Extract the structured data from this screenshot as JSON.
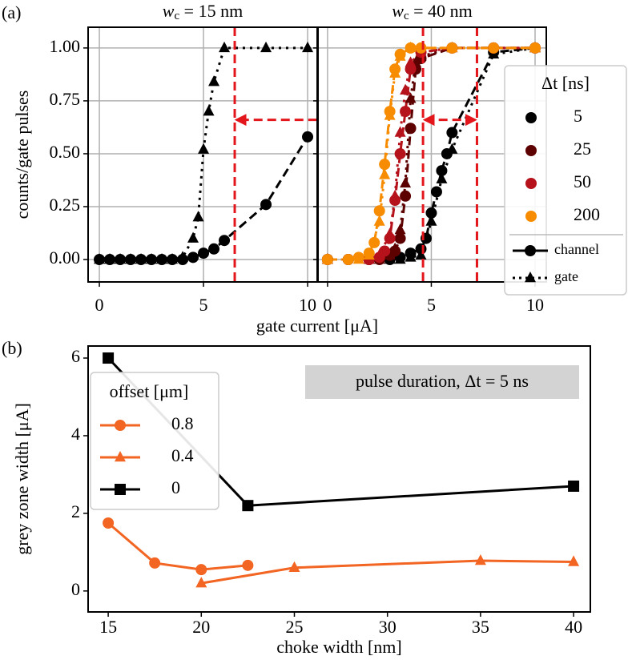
{
  "panel_labels": [
    "(a)",
    "(b)"
  ],
  "chart_data": [
    {
      "type": "line",
      "title": [
        "w",
        "c",
        " = 15 nm"
      ],
      "ylabel": "counts/gate pulses",
      "xlabel": "gate current [μA]",
      "xlim": [
        -0.54,
        10.46
      ],
      "ylim": [
        -0.106,
        1.098
      ],
      "xticks": [
        0,
        5,
        10
      ],
      "yticks": [
        {
          "value": 0,
          "label": "0.00"
        },
        {
          "value": 0.25,
          "label": "0.25"
        },
        {
          "value": 0.5,
          "label": "0.50"
        },
        {
          "value": 0.75,
          "label": "0.75"
        },
        {
          "value": 1,
          "label": "1.00"
        }
      ],
      "grid": true,
      "series": [
        {
          "color": "#000000",
          "channel": {
            "x": [
              0,
              0.5,
              1,
              1.5,
              2,
              2.5,
              3,
              3.5,
              4,
              4.5,
              5,
              5.5,
              6,
              8,
              10
            ],
            "values": [
              0,
              0,
              0,
              0,
              0,
              0,
              0,
              0,
              0,
              0.01,
              0.03,
              0.05,
              0.09,
              0.26,
              0.58
            ]
          },
          "gate": {
            "x": [
              0,
              0.5,
              1,
              1.5,
              2,
              2.5,
              3,
              3.5,
              4,
              4.5,
              4.75,
              5,
              5.25,
              5.5,
              6,
              8,
              10
            ],
            "values": [
              0,
              0,
              0,
              0,
              0,
              0,
              0,
              0,
              0.01,
              0.1,
              0.2,
              0.52,
              0.7,
              0.84,
              1,
              1,
              1
            ]
          }
        }
      ],
      "vlines": [
        6.5
      ],
      "arrows": [
        {
          "y": 0.66,
          "x": [
            10.45,
            6.6
          ],
          "heads": "end"
        }
      ],
      "annotation_color": "#e3161c"
    },
    {
      "type": "line",
      "title": [
        "w",
        "c",
        " = 40 nm"
      ],
      "xlim": [
        -0.46,
        10.54
      ],
      "ylim": [
        -0.106,
        1.098
      ],
      "xticks": [
        0,
        5,
        10
      ],
      "yticks": [
        0,
        0.25,
        0.5,
        0.75,
        1
      ],
      "grid": true,
      "legend_title": "Δt [ns]",
      "line_styles": [
        "channel",
        "gate"
      ],
      "series": [
        {
          "name": "5",
          "color": "#000000",
          "channel": {
            "x": [
              0,
              1,
              2,
              3,
              3.5,
              4,
              4.5,
              4.75,
              5,
              5.25,
              5.5,
              5.75,
              6,
              8,
              10
            ],
            "values": [
              0,
              0,
              0,
              0,
              0.01,
              0.03,
              0.05,
              0.1,
              0.22,
              0.32,
              0.42,
              0.5,
              0.6,
              0.98,
              1
            ]
          },
          "gate": {
            "x": [
              0,
              2,
              3,
              3.5,
              4,
              4.5,
              5,
              5.5,
              6,
              8,
              10
            ],
            "values": [
              0,
              0,
              0,
              0,
              0.01,
              0.02,
              0.18,
              0.38,
              0.52,
              0.97,
              1
            ]
          }
        },
        {
          "name": "25",
          "color": "#5c0000",
          "channel": {
            "x": [
              0,
              1,
              2,
              2.5,
              3,
              3.25,
              3.5,
              3.75,
              4,
              4.25,
              4.5,
              6,
              8,
              10
            ],
            "values": [
              0,
              0,
              0,
              0,
              0.02,
              0.04,
              0.1,
              0.3,
              0.62,
              0.9,
              0.95,
              1,
              1,
              1
            ]
          },
          "gate": {
            "x": [
              0,
              2,
              2.5,
              3,
              3.25,
              3.5,
              3.75,
              4,
              4.25,
              4.5,
              6,
              10
            ],
            "values": [
              0,
              0,
              0,
              0.02,
              0.05,
              0.14,
              0.36,
              0.76,
              0.93,
              0.96,
              1,
              1
            ]
          }
        },
        {
          "name": "50",
          "color": "#b5121b",
          "channel": {
            "x": [
              0,
              1,
              2,
              2.5,
              2.75,
              3,
              3.25,
              3.5,
              3.75,
              4,
              4.5,
              6,
              8,
              10
            ],
            "values": [
              0,
              0,
              0,
              0.01,
              0.04,
              0.1,
              0.28,
              0.5,
              0.7,
              0.9,
              0.98,
              1,
              1,
              1
            ]
          },
          "gate": {
            "x": [
              0,
              2,
              2.5,
              3,
              3.25,
              3.5,
              3.75,
              4,
              4.5,
              6,
              10
            ],
            "values": [
              0,
              0,
              0.02,
              0.12,
              0.3,
              0.6,
              0.8,
              0.93,
              0.98,
              1,
              1
            ]
          }
        },
        {
          "name": "200",
          "color": "#f78c00",
          "channel": {
            "x": [
              0,
              1,
              1.5,
              2,
              2.25,
              2.5,
              2.75,
              3,
              3.25,
              3.5,
              4,
              4.5,
              6,
              8,
              10
            ],
            "values": [
              0,
              0,
              0.01,
              0.03,
              0.08,
              0.23,
              0.45,
              0.7,
              0.9,
              0.97,
              1,
              1,
              1,
              1,
              1
            ]
          },
          "gate": {
            "x": [
              0,
              1.5,
              2,
              2.5,
              2.75,
              3,
              3.25,
              3.5,
              4,
              6,
              10
            ],
            "values": [
              0,
              0,
              0.02,
              0.18,
              0.4,
              0.68,
              0.88,
              0.96,
              1,
              1,
              1
            ]
          }
        }
      ],
      "vlines": [
        4.6,
        7.2
      ],
      "arrows": [
        {
          "y": 0.66,
          "x": [
            4.7,
            7.1
          ],
          "heads": "both"
        }
      ],
      "annotation_color": "#e3161c"
    },
    {
      "type": "line",
      "xlabel": "choke width [nm]",
      "ylabel": "grey zone width [μA]",
      "xlim": [
        13.92,
        40.9
      ],
      "ylim": [
        -0.54,
        6.31
      ],
      "xticks": [
        15,
        20,
        25,
        30,
        35,
        40
      ],
      "yticks": [
        0,
        2,
        4,
        6
      ],
      "grid": false,
      "legend_title": "offset [μm]",
      "annotation": "pulse duration,  Δt = 5 ns",
      "series": [
        {
          "name": "0.8",
          "color": "#f26522",
          "marker": "circle",
          "x": [
            15,
            17.5,
            20,
            22.5
          ],
          "values": [
            1.75,
            0.72,
            0.55,
            0.66
          ]
        },
        {
          "name": "0.4",
          "color": "#f26522",
          "marker": "triangle",
          "x": [
            20,
            25,
            35,
            40
          ],
          "values": [
            0.2,
            0.6,
            0.78,
            0.75
          ]
        },
        {
          "name": "0",
          "color": "#000000",
          "marker": "square",
          "x": [
            15,
            22.5,
            40
          ],
          "values": [
            6,
            2.2,
            2.7
          ]
        }
      ]
    }
  ]
}
